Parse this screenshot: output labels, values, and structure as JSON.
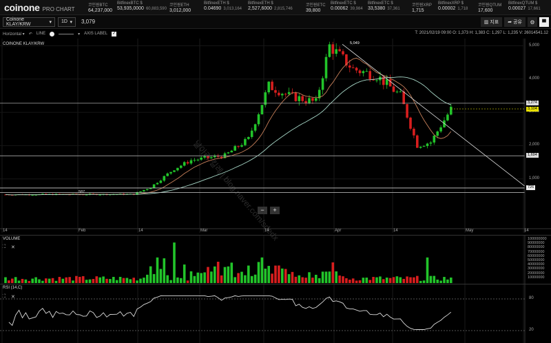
{
  "app": {
    "logo": "coinone",
    "logo_sub": "PRO CHART"
  },
  "tickers": [
    {
      "name": "코인원BTC",
      "value": "64,237,000",
      "sub": ""
    },
    {
      "name": "BitfinexBTC $",
      "value": "53,935,0000",
      "sub": "60,883,590"
    },
    {
      "name": "코인원ETH",
      "value": "3,012,000",
      "sub": ""
    },
    {
      "name": "BitfinexETH $",
      "value": "0.04690",
      "sub": "3,013,164"
    },
    {
      "name": "BitfinexETH $",
      "value": "2,527,6000",
      "sub": "2,815,746"
    },
    {
      "name": "코인원ETC",
      "value": "39,800",
      "sub": ""
    },
    {
      "name": "BitfinexETC $",
      "value": "0.00062",
      "sub": "39,984"
    },
    {
      "name": "BitfinexETC $",
      "value": "33,5380",
      "sub": "37,361"
    },
    {
      "name": "코인원XRP",
      "value": "1,715",
      "sub": ""
    },
    {
      "name": "BitfinexXRP $",
      "value": "0.00002",
      "sub": "1,718"
    },
    {
      "name": "코인원QTUM",
      "value": "17,600",
      "sub": ""
    },
    {
      "name": "BitfinexQTUM $",
      "value": "0.00027",
      "sub": "17,661"
    }
  ],
  "toolbar": {
    "market": "Coinone KLAY/KRW",
    "interval": "1D",
    "price": "3,079",
    "indicator_label": "지표",
    "share_label": "공유"
  },
  "drawbar": {
    "tool": "Horizontal",
    "line_label": "LINE",
    "axis_label": "AXIS LABEL",
    "ohlc": "T: 2021/02/19 09:00  O: 1,373  H: 1,383  C: 1,297  L: 1,235  V: 26014541.12"
  },
  "main_chart": {
    "title": "COINONE KLAY/KRW",
    "y_ticks": [
      "5,000",
      "4,000",
      "3,000",
      "2,000",
      "1,000"
    ],
    "x_ticks": [
      "14",
      "Feb",
      "14",
      "Mar",
      "14",
      "Apr",
      "14",
      "May",
      "14"
    ],
    "price_tags": [
      "5,049",
      "3,274",
      "3,104",
      "1,694",
      "726",
      "587"
    ],
    "watermark": "날아라 킬레 | blog.naver.com/sdedx"
  },
  "volume": {
    "title": "VOLUME",
    "y_ticks": [
      "100000000",
      "90000000",
      "80000000",
      "70000000",
      "60000000",
      "50000000",
      "40000000",
      "30000000",
      "20000000",
      "10000000"
    ]
  },
  "rsi": {
    "title": "RSI (14,C)",
    "y_ticks": [
      "80",
      "20"
    ]
  },
  "colors": {
    "up": "#22c42a",
    "down": "#d81e1e",
    "bg": "#000000",
    "ma_short": "#c8805a",
    "ma_long": "#a8d8c8"
  }
}
